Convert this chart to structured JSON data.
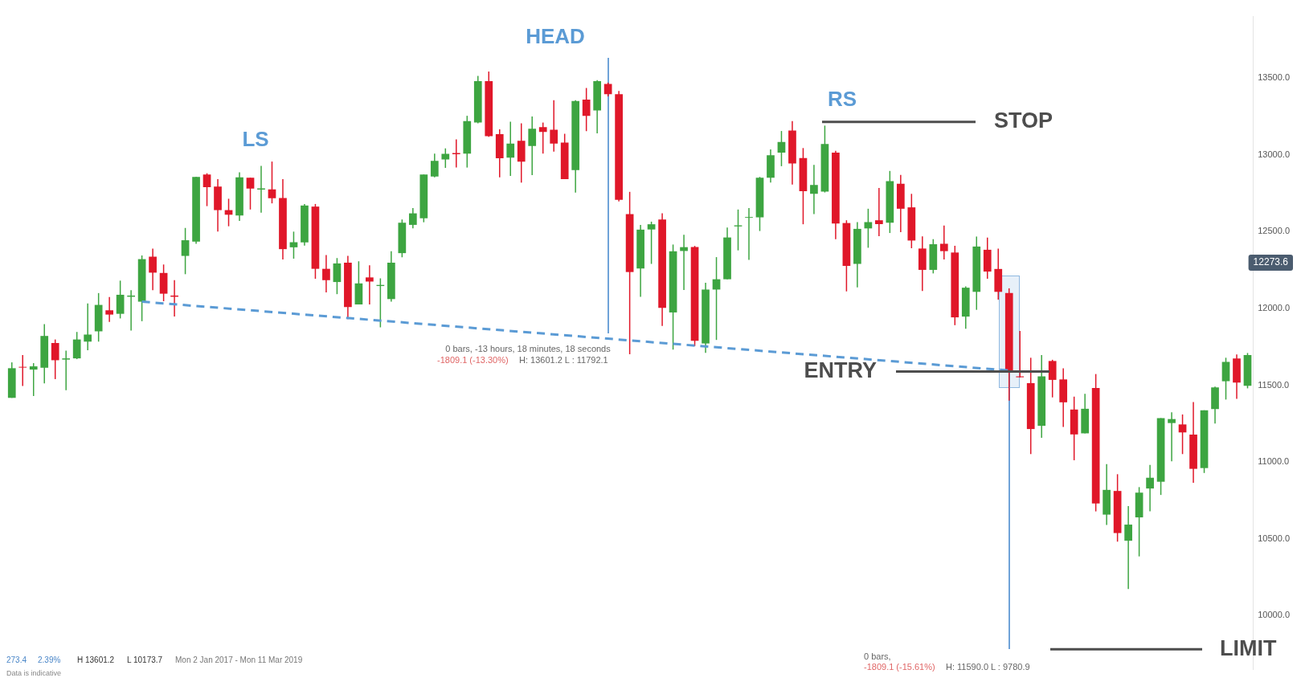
{
  "chart_data": {
    "type": "candlestick",
    "tick_labels": "y",
    "categories": [
      null,
      null,
      null,
      null,
      null,
      null,
      null,
      null,
      null,
      null,
      null,
      null,
      null,
      null,
      null,
      null,
      null,
      null,
      null,
      null,
      null,
      null,
      null,
      null,
      null,
      null,
      null,
      null,
      null,
      null,
      null,
      null,
      null,
      null,
      null,
      null,
      null,
      null,
      null,
      null,
      null,
      null,
      null,
      null,
      null,
      null,
      null,
      null,
      null,
      null,
      null,
      null,
      null,
      null,
      null,
      null,
      null,
      null,
      null,
      null,
      null,
      null,
      null,
      null,
      null,
      null,
      null,
      null,
      null,
      null,
      null,
      null,
      null,
      null,
      null,
      null,
      null,
      null,
      null,
      null,
      null,
      null,
      null,
      null,
      null,
      null,
      null,
      null,
      null,
      null,
      null,
      null,
      null,
      null,
      null,
      null,
      null,
      null,
      null,
      null,
      null,
      null,
      null,
      null,
      null,
      null,
      null,
      null,
      null,
      null,
      null,
      null,
      null,
      null,
      null
    ],
    "ohlc": [
      [
        11418,
        11649,
        11418,
        11611
      ],
      [
        11620,
        11696,
        11495,
        11615
      ],
      [
        11602,
        11644,
        11430,
        11623
      ],
      [
        11614,
        11898,
        11512,
        11821
      ],
      [
        11775,
        11798,
        11540,
        11663
      ],
      [
        11667,
        11725,
        11468,
        11675
      ],
      [
        11675,
        11847,
        11670,
        11798
      ],
      [
        11784,
        12033,
        11728,
        11830
      ],
      [
        11851,
        12100,
        11784,
        12023
      ],
      [
        11988,
        12075,
        11912,
        11960
      ],
      [
        11965,
        12181,
        11935,
        12089
      ],
      [
        12076,
        12119,
        11856,
        12084
      ],
      [
        12044,
        12345,
        11917,
        12321
      ],
      [
        12337,
        12389,
        12119,
        12233
      ],
      [
        12231,
        12286,
        12047,
        12096
      ],
      [
        12084,
        12184,
        11947,
        12076
      ],
      [
        12342,
        12524,
        12223,
        12444
      ],
      [
        12435,
        12856,
        12421,
        12856
      ],
      [
        12872,
        12880,
        12666,
        12789
      ],
      [
        12793,
        12842,
        12500,
        12640
      ],
      [
        12640,
        12714,
        12535,
        12610
      ],
      [
        12605,
        12886,
        12570,
        12854
      ],
      [
        12851,
        12851,
        12644,
        12780
      ],
      [
        12774,
        12928,
        12623,
        12781
      ],
      [
        12775,
        12956,
        12684,
        12717
      ],
      [
        12719,
        12842,
        12319,
        12386
      ],
      [
        12398,
        12500,
        12324,
        12431
      ],
      [
        12430,
        12680,
        12409,
        12670
      ],
      [
        12663,
        12680,
        12193,
        12258
      ],
      [
        12258,
        12347,
        12105,
        12184
      ],
      [
        12172,
        12328,
        12093,
        12293
      ],
      [
        12298,
        12342,
        11930,
        12009
      ],
      [
        12026,
        12307,
        12026,
        12163
      ],
      [
        12202,
        12281,
        12026,
        12175
      ],
      [
        12146,
        12196,
        11877,
        12153
      ],
      [
        12061,
        12372,
        12044,
        12298
      ],
      [
        12360,
        12579,
        12333,
        12558
      ],
      [
        12544,
        12654,
        12521,
        12619
      ],
      [
        12587,
        12872,
        12561,
        12872
      ],
      [
        12859,
        13008,
        12854,
        12961
      ],
      [
        12970,
        13042,
        12915,
        13007
      ],
      [
        13012,
        13100,
        12917,
        13004
      ],
      [
        13008,
        13254,
        12917,
        13219
      ],
      [
        13210,
        13514,
        13205,
        13479
      ],
      [
        13479,
        13542,
        13117,
        13122
      ],
      [
        13135,
        13166,
        12854,
        12977
      ],
      [
        12982,
        13215,
        12863,
        13073
      ],
      [
        13091,
        13205,
        12819,
        12956
      ],
      [
        13058,
        13249,
        12868,
        13170
      ],
      [
        13180,
        13210,
        13008,
        13149
      ],
      [
        13163,
        13356,
        13021,
        13073
      ],
      [
        13079,
        13137,
        12842,
        12842
      ],
      [
        12900,
        13356,
        12754,
        13350
      ],
      [
        13359,
        13435,
        13154,
        13254
      ],
      [
        13289,
        13486,
        13140,
        13479
      ],
      [
        13461,
        13470,
        13380,
        13394
      ],
      [
        13394,
        13415,
        12696,
        12707
      ],
      [
        12614,
        12759,
        11702,
        12237
      ],
      [
        12260,
        12544,
        12076,
        12513
      ],
      [
        12514,
        12565,
        12290,
        12548
      ],
      [
        12579,
        12620,
        11886,
        12004
      ],
      [
        11974,
        12416,
        11732,
        12372
      ],
      [
        12374,
        12479,
        12120,
        12399
      ],
      [
        12400,
        12407,
        11755,
        11790
      ],
      [
        11772,
        12167,
        11711,
        12123
      ],
      [
        12123,
        12334,
        11795,
        12190
      ],
      [
        12190,
        12527,
        12190,
        12462
      ],
      [
        12534,
        12644,
        12378,
        12541
      ],
      [
        12590,
        12653,
        12316,
        12595
      ],
      [
        12593,
        12856,
        12504,
        12851
      ],
      [
        12851,
        13035,
        12820,
        12997
      ],
      [
        13014,
        13155,
        12926,
        13083
      ],
      [
        13158,
        13219,
        12807,
        12944
      ],
      [
        12979,
        13044,
        12548,
        12763
      ],
      [
        12746,
        12935,
        12614,
        12804
      ],
      [
        12760,
        13190,
        12755,
        13070
      ],
      [
        13014,
        13026,
        12451,
        12553
      ],
      [
        12556,
        12574,
        12111,
        12277
      ],
      [
        12290,
        12562,
        12137,
        12518
      ],
      [
        12521,
        12649,
        12395,
        12562
      ],
      [
        12574,
        12784,
        12470,
        12549
      ],
      [
        12558,
        12895,
        12491,
        12828
      ],
      [
        12811,
        12869,
        12497,
        12649
      ],
      [
        12658,
        12746,
        12392,
        12442
      ],
      [
        12390,
        12469,
        12114,
        12251
      ],
      [
        12251,
        12451,
        12228,
        12418
      ],
      [
        12421,
        12540,
        12319,
        12373
      ],
      [
        12364,
        12408,
        11891,
        11942
      ],
      [
        11947,
        12143,
        11868,
        12135
      ],
      [
        12108,
        12468,
        11991,
        12403
      ],
      [
        12382,
        12461,
        12193,
        12240
      ],
      [
        12257,
        12389,
        12057,
        12108
      ],
      [
        12101,
        12131,
        11400,
        11587
      ],
      [
        11558,
        11854,
        11550,
        11552
      ],
      [
        11514,
        11679,
        11052,
        11215
      ],
      [
        11236,
        11696,
        11158,
        11558
      ],
      [
        11658,
        11666,
        11421,
        11535
      ],
      [
        11538,
        11610,
        11228,
        11389
      ],
      [
        11342,
        11426,
        11012,
        11180
      ],
      [
        11187,
        11444,
        11187,
        11347
      ],
      [
        11482,
        11573,
        10679,
        10731
      ],
      [
        10658,
        10987,
        10591,
        10819
      ],
      [
        10812,
        10921,
        10482,
        10538
      ],
      [
        10488,
        10714,
        10174,
        10593
      ],
      [
        10640,
        10837,
        10386,
        10801
      ],
      [
        10828,
        10982,
        10679,
        10898
      ],
      [
        10872,
        11286,
        10786,
        11286
      ],
      [
        11254,
        11324,
        11005,
        11280
      ],
      [
        11245,
        11310,
        11052,
        11193
      ],
      [
        11179,
        11391,
        10865,
        10956
      ],
      [
        10961,
        11337,
        10929,
        11337
      ],
      [
        11345,
        11491,
        11251,
        11486
      ],
      [
        11526,
        11679,
        11407,
        11652
      ],
      [
        11675,
        11701,
        11412,
        11517
      ],
      [
        11496,
        11710,
        11480,
        11696
      ]
    ],
    "colors": [
      "#3da541",
      "#e01729",
      "#3da541",
      "#3da541",
      "#e01729",
      "#3da541",
      "#3da541",
      "#3da541",
      "#3da541",
      "#e01729",
      "#3da541",
      "#3da541",
      "#3da541",
      "#e01729",
      "#e01729",
      "#e01729",
      "#3da541",
      "#3da541",
      "#e01729",
      "#e01729",
      "#e01729",
      "#3da541",
      "#e01729",
      "#3da541",
      "#e01729",
      "#e01729",
      "#3da541",
      "#3da541",
      "#e01729",
      "#e01729",
      "#3da541",
      "#e01729",
      "#3da541",
      "#e01729",
      "#3da541",
      "#3da541",
      "#3da541",
      "#3da541",
      "#3da541",
      "#3da541",
      "#3da541",
      "#e01729",
      "#3da541",
      "#3da541",
      "#e01729",
      "#e01729",
      "#3da541",
      "#e01729",
      "#3da541",
      "#e01729",
      "#e01729",
      "#e01729",
      "#3da541",
      "#e01729",
      "#3da541",
      "#e01729",
      "#e01729",
      "#e01729",
      "#3da541",
      "#3da541",
      "#e01729",
      "#3da541",
      "#3da541",
      "#e01729",
      "#3da541",
      "#3da541",
      "#3da541",
      "#3da541",
      "#3da541",
      "#3da541",
      "#3da541",
      "#3da541",
      "#e01729",
      "#e01729",
      "#3da541",
      "#3da541",
      "#e01729",
      "#e01729",
      "#3da541",
      "#3da541",
      "#e01729",
      "#3da541",
      "#e01729",
      "#e01729",
      "#e01729",
      "#3da541",
      "#e01729",
      "#e01729",
      "#3da541",
      "#3da541",
      "#e01729",
      "#e01729",
      "#e01729",
      "#e01729",
      "#e01729",
      "#3da541",
      "#e01729",
      "#e01729",
      "#e01729",
      "#3da541",
      "#e01729",
      "#3da541",
      "#e01729",
      "#3da541",
      "#3da541",
      "#3da541",
      "#3da541",
      "#3da541",
      "#e01729",
      "#e01729",
      "#3da541",
      "#3da541",
      "#3da541",
      "#e01729",
      "#3da541"
    ],
    "series": [
      {
        "type": "line",
        "color": "#5b9bd5",
        "line_style": "dashed",
        "marker": "none",
        "values": [
          null,
          null,
          null,
          null,
          null,
          null,
          null,
          null,
          null,
          null,
          null,
          null,
          12044,
          null,
          null,
          null,
          null,
          null,
          null,
          null,
          null,
          null,
          null,
          null,
          null,
          null,
          null,
          null,
          null,
          null,
          null,
          null,
          null,
          null,
          null,
          null,
          null,
          null,
          null,
          null,
          null,
          null,
          null,
          null,
          null,
          null,
          null,
          null,
          null,
          null,
          null,
          null,
          null,
          null,
          null,
          null,
          null,
          null,
          null,
          null,
          null,
          null,
          null,
          null,
          null,
          null,
          null,
          null,
          null,
          null,
          null,
          null,
          null,
          null,
          null,
          null,
          null,
          null,
          null,
          null,
          null,
          null,
          null,
          null,
          null,
          null,
          null,
          null,
          null,
          null,
          null,
          null,
          11596,
          null,
          null,
          null,
          null,
          null,
          null,
          null,
          null,
          null,
          null,
          null,
          null,
          null,
          null,
          null,
          null,
          null,
          null,
          null,
          null,
          null,
          null
        ]
      }
    ],
    "ylim": [
      9650,
      13900
    ],
    "yticks": [
      {
        "value": 10000,
        "label": "10000.0"
      },
      {
        "value": 10500,
        "label": "10500.0"
      },
      {
        "value": 11000,
        "label": "11000.0"
      },
      {
        "value": 11500,
        "label": "11500.0"
      },
      {
        "value": 12000,
        "label": "12000.0"
      },
      {
        "value": 12500,
        "label": "12500.0"
      },
      {
        "value": 13000,
        "label": "13000.0"
      },
      {
        "value": 13500,
        "label": "13500.0"
      }
    ],
    "ref_lines": [
      {
        "axis": "y",
        "value": 13214,
        "label": "STOP",
        "color": "#4d4d4d"
      },
      {
        "axis": "y",
        "value": 11590,
        "label": "ENTRY",
        "color": "#4d4d4d"
      },
      {
        "axis": "y",
        "value": 9780.9,
        "label": "LIMIT",
        "color": "#4d4d4d"
      }
    ],
    "annotations": [
      "LS",
      "HEAD",
      "RS",
      "0 bars, -13 hours, 18 minutes, 18 seconds",
      "-1809.1 (-13.30%)",
      "H: 13601.2 L : 11792.1",
      "0 bars,",
      "-1809.1 (-15.61%)",
      "H: 11590.0 L : 9780.9",
      "273.4",
      "2.39%",
      "H 13601.2",
      "L 10173.7",
      "Mon 2 Jan 2017 - Mon 11 Mar 2019",
      "Data is indicative",
      "12273.6"
    ]
  }
}
